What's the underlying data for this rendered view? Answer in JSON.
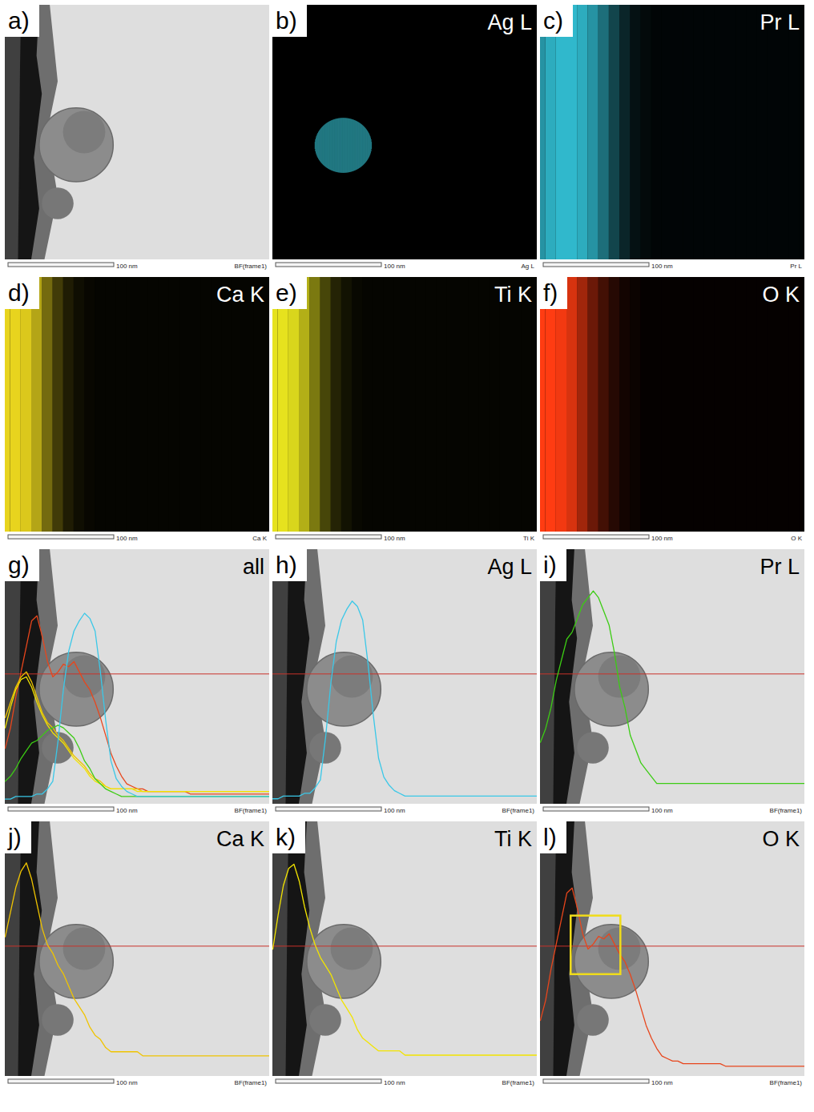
{
  "chart_data": [
    {
      "type": "image",
      "panel_label": "a)",
      "footer": "BF(frame1)",
      "scale_bar": {
        "value": 100,
        "label": "100 nm"
      },
      "xlim": [
        0,
        250
      ],
      "ylim": [
        0,
        250
      ],
      "tick_labels": false
    },
    {
      "type": "map",
      "panel_label": "b)",
      "title": "Ag L",
      "footer": "Ag L",
      "scale_bar": {
        "value": 100,
        "label": "100 nm"
      },
      "xlim": [
        0,
        250
      ],
      "ylim": [
        0,
        250
      ],
      "tick_labels": false,
      "color": "#38c4d4",
      "particle": {
        "center": [
          67,
          112
        ],
        "radius": 27
      }
    },
    {
      "type": "map",
      "panel_label": "c)",
      "title": "Pr L",
      "footer": "Pr L",
      "scale_bar": {
        "value": 100,
        "label": "100 nm"
      },
      "xlim": [
        0,
        250
      ],
      "ylim": [
        0,
        250
      ],
      "tick_labels": false,
      "color": "#30b8cc",
      "x": [
        0,
        10,
        20,
        30,
        40,
        50,
        60,
        70,
        80,
        90,
        100,
        110,
        120,
        130,
        140,
        150,
        160,
        170,
        180,
        190,
        200,
        210,
        220,
        230,
        240,
        250
      ],
      "values": [
        60,
        70,
        75,
        75,
        70,
        60,
        45,
        28,
        15,
        7,
        4,
        2,
        2,
        2,
        2,
        2,
        2,
        2,
        2,
        2,
        2,
        2,
        2,
        2,
        2,
        2
      ]
    },
    {
      "type": "map",
      "panel_label": "d)",
      "title": "Ca K",
      "footer": "Ca K",
      "scale_bar": {
        "value": 100,
        "label": "100 nm"
      },
      "xlim": [
        0,
        250
      ],
      "ylim": [
        0,
        250
      ],
      "tick_labels": false,
      "color": "#e8d41e",
      "x": [
        0,
        10,
        20,
        30,
        40,
        50,
        60,
        70,
        80,
        90,
        100,
        110,
        120,
        130,
        140,
        150,
        160,
        170,
        180,
        190,
        200,
        210,
        220,
        230,
        240,
        250
      ],
      "values": [
        90,
        90,
        85,
        70,
        45,
        25,
        12,
        6,
        3,
        2,
        2,
        2,
        2,
        2,
        2,
        2,
        2,
        2,
        2,
        2,
        2,
        2,
        2,
        2,
        2,
        2
      ]
    },
    {
      "type": "map",
      "panel_label": "e)",
      "title": "Ti K",
      "footer": "Ti K",
      "scale_bar": {
        "value": 100,
        "label": "100 nm"
      },
      "xlim": [
        0,
        250
      ],
      "ylim": [
        0,
        250
      ],
      "tick_labels": false,
      "color": "#e6e21e",
      "x": [
        0,
        10,
        20,
        30,
        40,
        50,
        60,
        70,
        80,
        90,
        100,
        110,
        120,
        130,
        140,
        150,
        160,
        170,
        180,
        190,
        200,
        210,
        220,
        230,
        240,
        250
      ],
      "values": [
        90,
        90,
        85,
        70,
        48,
        28,
        14,
        7,
        3,
        2,
        2,
        2,
        2,
        2,
        2,
        2,
        2,
        2,
        2,
        2,
        2,
        2,
        2,
        2,
        2,
        2
      ]
    },
    {
      "type": "map",
      "panel_label": "f)",
      "title": "O K",
      "footer": "O K",
      "scale_bar": {
        "value": 100,
        "label": "100 nm"
      },
      "xlim": [
        0,
        250
      ],
      "ylim": [
        0,
        250
      ],
      "tick_labels": false,
      "color": "#ff3c12",
      "x": [
        0,
        10,
        20,
        30,
        40,
        50,
        60,
        70,
        80,
        90,
        100,
        110,
        120,
        130,
        140,
        150,
        160,
        170,
        180,
        190,
        200,
        210,
        220,
        230,
        240,
        250
      ],
      "values": [
        95,
        95,
        90,
        80,
        60,
        40,
        25,
        14,
        7,
        4,
        2,
        2,
        2,
        2,
        2,
        2,
        2,
        2,
        2,
        2,
        2,
        2,
        2,
        2,
        2,
        2
      ]
    },
    {
      "type": "line",
      "panel_label": "g)",
      "title": "all",
      "footer": "BF(frame1)",
      "scale_bar": {
        "value": 100,
        "label": "100 nm"
      },
      "xlim": [
        0,
        250
      ],
      "ylim": [
        0,
        100
      ],
      "tick_labels": false,
      "x": [
        0,
        5,
        10,
        15,
        20,
        25,
        30,
        35,
        40,
        45,
        50,
        55,
        60,
        65,
        70,
        75,
        80,
        85,
        90,
        95,
        100,
        105,
        110,
        115,
        120,
        125,
        130,
        135,
        140,
        145,
        150,
        155,
        160,
        165,
        170,
        175,
        180,
        185,
        190,
        195,
        200,
        205,
        210,
        215,
        220,
        225,
        230,
        235,
        240,
        245,
        250
      ],
      "series": [
        {
          "color": "#e8461c",
          "values": [
            22,
            30,
            42,
            52,
            62,
            72,
            74,
            66,
            56,
            50,
            52,
            55,
            54,
            56,
            52,
            48,
            45,
            40,
            34,
            27,
            20,
            15,
            11,
            8,
            7,
            6,
            6,
            5,
            5,
            5,
            5,
            5,
            5,
            5,
            5,
            4,
            4,
            4,
            4,
            4,
            4,
            4,
            4,
            4,
            4,
            4,
            4,
            4,
            4,
            4,
            4
          ]
        },
        {
          "color": "#f0c400",
          "values": [
            34,
            40,
            46,
            50,
            52,
            48,
            42,
            36,
            32,
            30,
            27,
            25,
            22,
            19,
            17,
            15,
            12,
            10,
            9,
            7,
            6,
            6,
            6,
            6,
            6,
            6,
            5,
            5,
            5,
            5,
            5,
            5,
            5,
            5,
            5,
            5,
            5,
            5,
            5,
            5,
            5,
            5,
            5,
            5,
            5,
            5,
            5,
            5,
            5,
            5,
            5
          ]
        },
        {
          "color": "#f2e400",
          "values": [
            30,
            38,
            45,
            49,
            50,
            46,
            40,
            35,
            31,
            28,
            26,
            24,
            21,
            18,
            16,
            14,
            11,
            9,
            8,
            7,
            6,
            6,
            6,
            6,
            6,
            5,
            5,
            5,
            5,
            5,
            5,
            5,
            5,
            5,
            5,
            5,
            5,
            5,
            5,
            5,
            5,
            5,
            5,
            5,
            5,
            5,
            5,
            5,
            5,
            5,
            5
          ]
        },
        {
          "color": "#3ccc14",
          "values": [
            9,
            11,
            14,
            18,
            21,
            24,
            25,
            27,
            29,
            30,
            31,
            30,
            28,
            26,
            22,
            17,
            14,
            10,
            8,
            6,
            5,
            4,
            3,
            3,
            3,
            3,
            3,
            3,
            3,
            3,
            3,
            3,
            3,
            3,
            3,
            3,
            3,
            3,
            3,
            3,
            3,
            3,
            3,
            3,
            3,
            3,
            3,
            3,
            3,
            3,
            3
          ]
        },
        {
          "color": "#3ac8e8",
          "values": [
            2,
            2,
            3,
            3,
            3,
            3,
            4,
            4,
            6,
            9,
            25,
            45,
            60,
            68,
            72,
            75,
            73,
            68,
            52,
            33,
            17,
            10,
            7,
            5,
            4,
            3,
            3,
            3,
            3,
            3,
            3,
            3,
            3,
            3,
            3,
            3,
            3,
            3,
            3,
            3,
            3,
            3,
            3,
            3,
            3,
            3,
            3,
            3,
            3,
            3,
            3
          ]
        }
      ]
    },
    {
      "type": "line",
      "panel_label": "h)",
      "title": "Ag L",
      "footer": "BF(frame1)",
      "scale_bar": {
        "value": 100,
        "label": "100 nm"
      },
      "xlim": [
        0,
        250
      ],
      "ylim": [
        0,
        94
      ],
      "tick_labels": false,
      "x": [
        0,
        5,
        10,
        15,
        20,
        25,
        30,
        35,
        40,
        45,
        50,
        55,
        60,
        65,
        70,
        75,
        80,
        85,
        90,
        95,
        100,
        105,
        110,
        115,
        120,
        125,
        130,
        135,
        140,
        145,
        150,
        155,
        160,
        165,
        170,
        175,
        180,
        185,
        190,
        195,
        200,
        205,
        210,
        215,
        220,
        225,
        230,
        235,
        240,
        245,
        250
      ],
      "series": [
        {
          "color": "#3ac8e8",
          "values": [
            2,
            2,
            3,
            3,
            3,
            3,
            4,
            4,
            6,
            9,
            25,
            45,
            60,
            68,
            72,
            75,
            73,
            68,
            52,
            33,
            17,
            10,
            7,
            5,
            4,
            3,
            3,
            3,
            3,
            3,
            3,
            3,
            3,
            3,
            3,
            3,
            3,
            3,
            3,
            3,
            3,
            3,
            3,
            3,
            3,
            3,
            3,
            3,
            3,
            3,
            3
          ]
        }
      ]
    },
    {
      "type": "line",
      "panel_label": "i)",
      "title": "Pr L",
      "footer": "BF(frame1)",
      "scale_bar": {
        "value": 100,
        "label": "100 nm"
      },
      "xlim": [
        0,
        250
      ],
      "ylim": [
        0,
        37
      ],
      "tick_labels": false,
      "x": [
        0,
        5,
        10,
        15,
        20,
        25,
        30,
        35,
        40,
        45,
        50,
        55,
        60,
        65,
        70,
        75,
        80,
        85,
        90,
        95,
        100,
        105,
        110,
        115,
        120,
        125,
        130,
        135,
        140,
        145,
        150,
        155,
        160,
        165,
        170,
        175,
        180,
        185,
        190,
        195,
        200,
        205,
        210,
        215,
        220,
        225,
        230,
        235,
        240,
        245,
        250
      ],
      "series": [
        {
          "color": "#3ccc14",
          "values": [
            9,
            11,
            14,
            18,
            21,
            24,
            25,
            27,
            29,
            30,
            31,
            30,
            28,
            26,
            22,
            17,
            14,
            10,
            8,
            6,
            5,
            4,
            3,
            3,
            3,
            3,
            3,
            3,
            3,
            3,
            3,
            3,
            3,
            3,
            3,
            3,
            3,
            3,
            3,
            3,
            3,
            3,
            3,
            3,
            3,
            3,
            3,
            3,
            3,
            3,
            3
          ]
        }
      ]
    },
    {
      "type": "line",
      "panel_label": "j)",
      "title": "Ca K",
      "footer": "BF(frame1)",
      "scale_bar": {
        "value": 100,
        "label": "100 nm"
      },
      "xlim": [
        0,
        250
      ],
      "ylim": [
        0,
        62
      ],
      "tick_labels": false,
      "x": [
        0,
        5,
        10,
        15,
        20,
        25,
        30,
        35,
        40,
        45,
        50,
        55,
        60,
        65,
        70,
        75,
        80,
        85,
        90,
        95,
        100,
        105,
        110,
        115,
        120,
        125,
        130,
        135,
        140,
        145,
        150,
        155,
        160,
        165,
        170,
        175,
        180,
        185,
        190,
        195,
        200,
        205,
        210,
        215,
        220,
        225,
        230,
        235,
        240,
        245,
        250
      ],
      "series": [
        {
          "color": "#f0c400",
          "values": [
            34,
            40,
            46,
            50,
            52,
            48,
            42,
            36,
            32,
            30,
            27,
            25,
            22,
            19,
            17,
            15,
            12,
            10,
            9,
            7,
            6,
            6,
            6,
            6,
            6,
            6,
            5,
            5,
            5,
            5,
            5,
            5,
            5,
            5,
            5,
            5,
            5,
            5,
            5,
            5,
            5,
            5,
            5,
            5,
            5,
            5,
            5,
            5,
            5,
            5,
            5
          ]
        }
      ]
    },
    {
      "type": "line",
      "panel_label": "k)",
      "title": "Ti K",
      "footer": "BF(frame1)",
      "scale_bar": {
        "value": 100,
        "label": "100 nm"
      },
      "xlim": [
        0,
        250
      ],
      "ylim": [
        0,
        60
      ],
      "tick_labels": false,
      "x": [
        0,
        5,
        10,
        15,
        20,
        25,
        30,
        35,
        40,
        45,
        50,
        55,
        60,
        65,
        70,
        75,
        80,
        85,
        90,
        95,
        100,
        105,
        110,
        115,
        120,
        125,
        130,
        135,
        140,
        145,
        150,
        155,
        160,
        165,
        170,
        175,
        180,
        185,
        190,
        195,
        200,
        205,
        210,
        215,
        220,
        225,
        230,
        235,
        240,
        245,
        250
      ],
      "series": [
        {
          "color": "#f2e400",
          "values": [
            30,
            38,
            45,
            49,
            50,
            46,
            40,
            35,
            31,
            28,
            26,
            24,
            21,
            18,
            16,
            14,
            11,
            9,
            8,
            7,
            6,
            6,
            6,
            6,
            6,
            5,
            5,
            5,
            5,
            5,
            5,
            5,
            5,
            5,
            5,
            5,
            5,
            5,
            5,
            5,
            5,
            5,
            5,
            5,
            5,
            5,
            5,
            5,
            5,
            5,
            5
          ]
        }
      ]
    },
    {
      "type": "line",
      "panel_label": "l)",
      "title": "O K",
      "footer": "BF(frame1)",
      "scale_bar": {
        "value": 100,
        "label": "100 nm"
      },
      "xlim": [
        0,
        250
      ],
      "ylim": [
        0,
        100
      ],
      "tick_labels": false,
      "x": [
        0,
        5,
        10,
        15,
        20,
        25,
        30,
        35,
        40,
        45,
        50,
        55,
        60,
        65,
        70,
        75,
        80,
        85,
        90,
        95,
        100,
        105,
        110,
        115,
        120,
        125,
        130,
        135,
        140,
        145,
        150,
        155,
        160,
        165,
        170,
        175,
        180,
        185,
        190,
        195,
        200,
        205,
        210,
        215,
        220,
        225,
        230,
        235,
        240,
        245,
        250
      ],
      "series": [
        {
          "color": "#e8461c",
          "values": [
            22,
            30,
            42,
            52,
            62,
            72,
            74,
            66,
            56,
            50,
            52,
            55,
            54,
            56,
            52,
            48,
            45,
            40,
            34,
            27,
            20,
            15,
            11,
            8,
            7,
            6,
            6,
            5,
            5,
            5,
            5,
            5,
            5,
            5,
            5,
            4,
            4,
            4,
            4,
            4,
            4,
            4,
            4,
            4,
            4,
            4,
            4,
            4,
            4,
            4,
            4
          ]
        }
      ],
      "highlight": {
        "x": [
          29,
          76
        ],
        "y": [
          40,
          63
        ]
      }
    }
  ]
}
